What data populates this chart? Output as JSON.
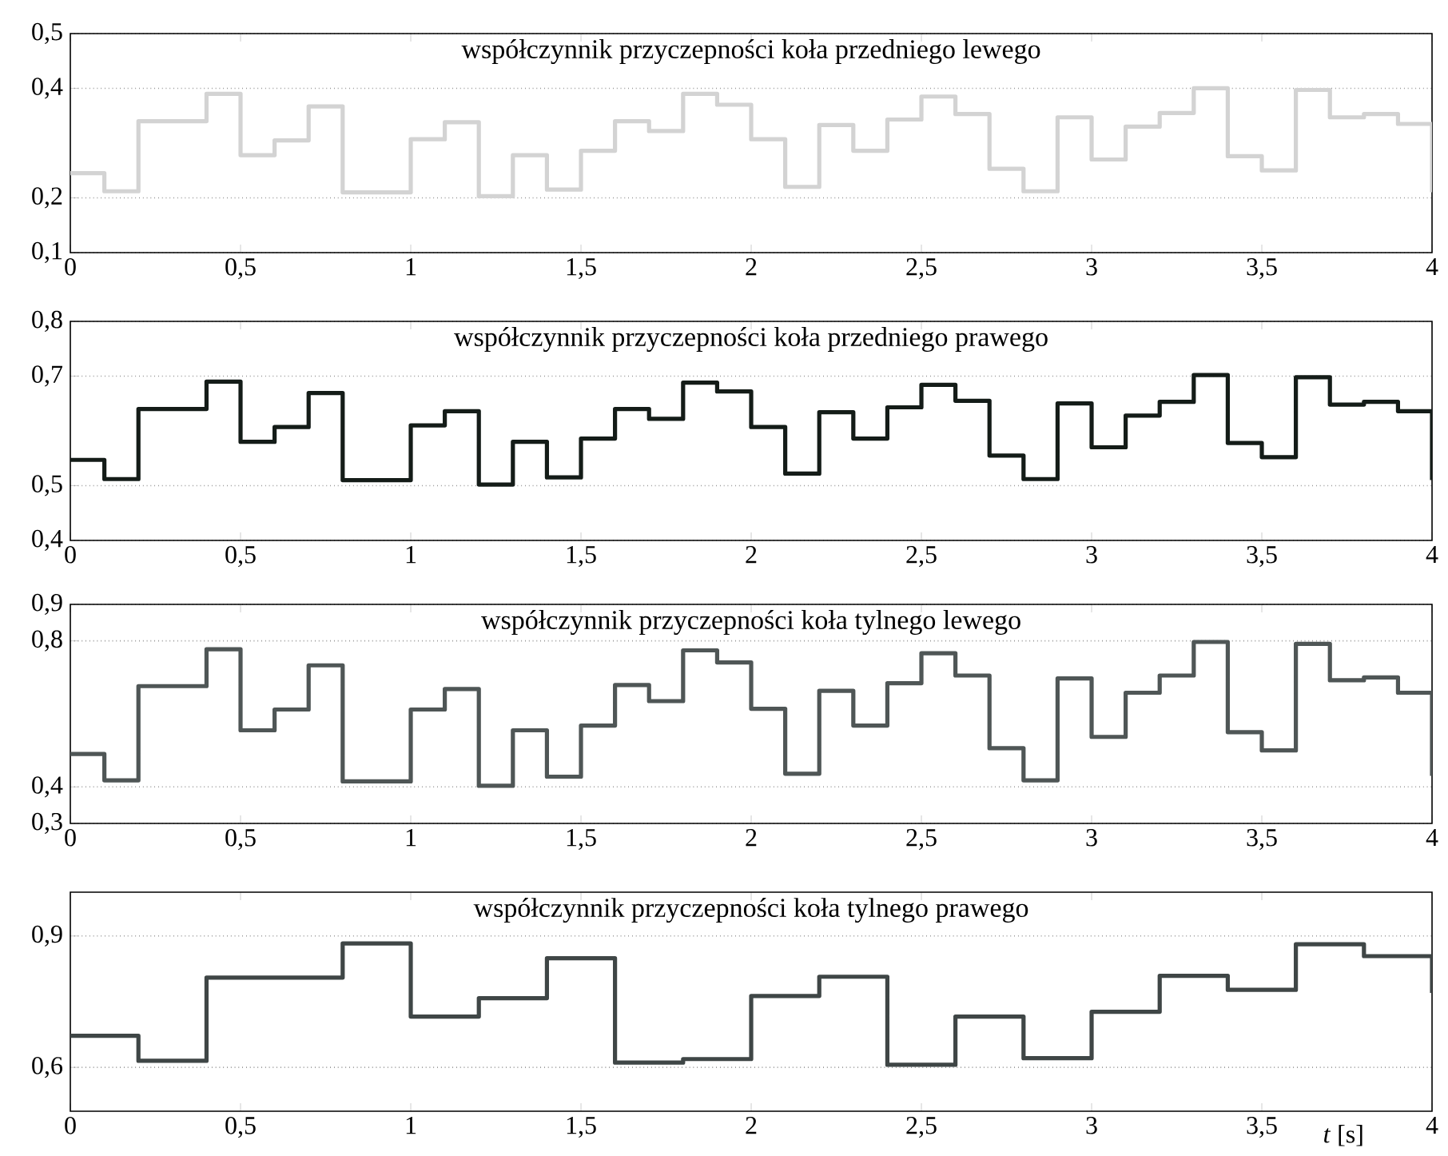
{
  "chart_data": [
    {
      "type": "step",
      "title": "współczynnik przyczepności koła przedniego lewego",
      "color": "#d3d3d3",
      "grid": "y",
      "xlim": [
        0,
        4
      ],
      "xticks": [
        0,
        {
          "value": 0.5,
          "label": "0,5"
        },
        1,
        {
          "value": 1.5,
          "label": "1,5"
        },
        2,
        {
          "value": 2.5,
          "label": "2,5"
        },
        3,
        {
          "value": 3.5,
          "label": "3,5"
        },
        4
      ],
      "ylim": [
        0.1,
        0.5
      ],
      "yticks": [
        {
          "value": 0.1,
          "label": "0,1"
        },
        {
          "value": 0.2,
          "label": "0,2"
        },
        {
          "value": 0.4,
          "label": "0,4"
        },
        {
          "value": 0.5,
          "label": "0,5"
        }
      ],
      "x": [
        0,
        0.1,
        0.2,
        0.4,
        0.5,
        0.6,
        0.7,
        0.8,
        1.0,
        1.1,
        1.2,
        1.3,
        1.4,
        1.5,
        1.6,
        1.7,
        1.8,
        1.9,
        2.0,
        2.1,
        2.2,
        2.3,
        2.4,
        2.5,
        2.6,
        2.7,
        2.8,
        2.9,
        3.0,
        3.1,
        3.2,
        3.3,
        3.4,
        3.5,
        3.6,
        3.7,
        3.8,
        3.9,
        4
      ],
      "values": [
        0.245,
        0.212,
        0.34,
        0.39,
        0.278,
        0.305,
        0.367,
        0.21,
        0.307,
        0.338,
        0.203,
        0.278,
        0.215,
        0.286,
        0.34,
        0.322,
        0.39,
        0.37,
        0.307,
        0.22,
        0.333,
        0.286,
        0.343,
        0.385,
        0.353,
        0.253,
        0.212,
        0.347,
        0.27,
        0.33,
        0.355,
        0.4,
        0.276,
        0.25,
        0.397,
        0.347,
        0.353,
        0.335,
        0.21
      ]
    },
    {
      "type": "step",
      "title": "współczynnik przyczepności koła przedniego prawego",
      "color": "#141c18",
      "grid": "y",
      "xlim": [
        0,
        4
      ],
      "xticks": [
        0,
        {
          "value": 0.5,
          "label": "0,5"
        },
        1,
        {
          "value": 1.5,
          "label": "1,5"
        },
        2,
        {
          "value": 2.5,
          "label": "2,5"
        },
        3,
        {
          "value": 3.5,
          "label": "3,5"
        },
        4
      ],
      "ylim": [
        0.4,
        0.8
      ],
      "yticks": [
        {
          "value": 0.4,
          "label": "0,4"
        },
        {
          "value": 0.5,
          "label": "0,5"
        },
        {
          "value": 0.7,
          "label": "0,7"
        },
        {
          "value": 0.8,
          "label": "0,8"
        }
      ],
      "x": [
        0,
        0.1,
        0.2,
        0.4,
        0.5,
        0.6,
        0.7,
        0.8,
        1.0,
        1.1,
        1.2,
        1.3,
        1.4,
        1.5,
        1.6,
        1.7,
        1.8,
        1.9,
        2.0,
        2.1,
        2.2,
        2.3,
        2.4,
        2.5,
        2.6,
        2.7,
        2.8,
        2.9,
        3.0,
        3.1,
        3.2,
        3.3,
        3.4,
        3.5,
        3.6,
        3.7,
        3.8,
        3.9,
        4
      ],
      "values": [
        0.547,
        0.512,
        0.64,
        0.69,
        0.58,
        0.607,
        0.669,
        0.51,
        0.61,
        0.636,
        0.502,
        0.58,
        0.515,
        0.586,
        0.64,
        0.622,
        0.688,
        0.672,
        0.607,
        0.522,
        0.634,
        0.586,
        0.643,
        0.684,
        0.655,
        0.555,
        0.512,
        0.65,
        0.57,
        0.628,
        0.653,
        0.702,
        0.578,
        0.552,
        0.698,
        0.648,
        0.653,
        0.636,
        0.51
      ]
    },
    {
      "type": "step",
      "title": "współczynnik przyczepności koła tylnego lewego",
      "color": "#4f5656",
      "grid": "y",
      "xlim": [
        0,
        4
      ],
      "xticks": [
        0,
        {
          "value": 0.5,
          "label": "0,5"
        },
        1,
        {
          "value": 1.5,
          "label": "1,5"
        },
        2,
        {
          "value": 2.5,
          "label": "2,5"
        },
        3,
        {
          "value": 3.5,
          "label": "3,5"
        },
        4
      ],
      "ylim": [
        0.3,
        0.9
      ],
      "yticks": [
        {
          "value": 0.3,
          "label": "0,3"
        },
        {
          "value": 0.4,
          "label": "0,4"
        },
        {
          "value": 0.8,
          "label": "0,8"
        },
        {
          "value": 0.9,
          "label": "0,9"
        }
      ],
      "x": [
        0,
        0.1,
        0.2,
        0.4,
        0.5,
        0.6,
        0.7,
        0.8,
        1.0,
        1.1,
        1.2,
        1.3,
        1.4,
        1.5,
        1.6,
        1.7,
        1.8,
        1.9,
        2.0,
        2.1,
        2.2,
        2.3,
        2.4,
        2.5,
        2.6,
        2.7,
        2.8,
        2.9,
        3.0,
        3.1,
        3.2,
        3.3,
        3.4,
        3.5,
        3.6,
        3.7,
        3.8,
        3.9,
        4
      ],
      "values": [
        0.49,
        0.418,
        0.676,
        0.777,
        0.555,
        0.612,
        0.733,
        0.415,
        0.612,
        0.668,
        0.403,
        0.555,
        0.428,
        0.568,
        0.679,
        0.635,
        0.774,
        0.741,
        0.614,
        0.436,
        0.663,
        0.568,
        0.684,
        0.766,
        0.705,
        0.506,
        0.418,
        0.697,
        0.537,
        0.658,
        0.705,
        0.797,
        0.55,
        0.5,
        0.792,
        0.692,
        0.7,
        0.658,
        0.43
      ]
    },
    {
      "type": "step",
      "title": "współczynnik przyczepności koła tylnego prawego",
      "xlabel": "*t* [s]",
      "color": "#3f4646",
      "grid": "y",
      "xlim": [
        0,
        4
      ],
      "xticks": [
        0,
        {
          "value": 0.5,
          "label": "0,5"
        },
        1,
        {
          "value": 1.5,
          "label": "1,5"
        },
        2,
        {
          "value": 2.5,
          "label": "2,5"
        },
        3,
        {
          "value": 3.5,
          "label": "3,5"
        },
        4
      ],
      "ylim": [
        0.5,
        1.0
      ],
      "yticks": [
        {
          "value": 0.6,
          "label": "0,6"
        },
        {
          "value": 0.9,
          "label": "0,9"
        }
      ],
      "x": [
        0,
        0.2,
        0.4,
        0.8,
        1.0,
        1.2,
        1.4,
        1.6,
        1.8,
        2.0,
        2.2,
        2.4,
        2.6,
        2.8,
        3.0,
        3.2,
        3.4,
        3.6,
        3.8,
        4
      ],
      "values": [
        0.672,
        0.615,
        0.805,
        0.883,
        0.716,
        0.758,
        0.849,
        0.611,
        0.619,
        0.763,
        0.807,
        0.606,
        0.716,
        0.621,
        0.727,
        0.809,
        0.777,
        0.881,
        0.854,
        0.77
      ]
    }
  ]
}
